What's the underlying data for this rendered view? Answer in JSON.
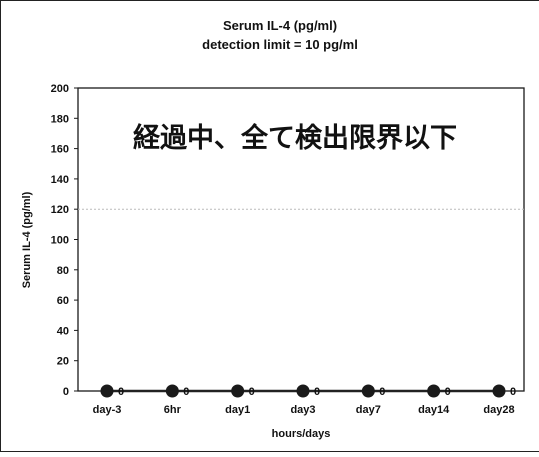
{
  "chart_data": {
    "type": "line",
    "title": "Serum IL-4 (pg/ml)",
    "subtitle": "detection limit = 10 pg/ml",
    "annotation": "経過中、全て検出限界以下",
    "xlabel": "hours/days",
    "ylabel": "Serum IL-4 (pg/ml)",
    "categories": [
      "day-3",
      "6hr",
      "day1",
      "day3",
      "day7",
      "day14",
      "day28"
    ],
    "yticks": [
      0,
      20,
      40,
      60,
      80,
      100,
      120,
      140,
      160,
      180,
      200
    ],
    "ylim": [
      0,
      200
    ],
    "reference_line": 120,
    "series": [
      {
        "values": [
          0,
          0,
          0,
          0,
          0,
          0,
          0
        ],
        "point_labels": [
          "0",
          "0",
          "0",
          "0",
          "0",
          "0",
          "0"
        ]
      }
    ],
    "grid": false,
    "colors": {
      "line": "#222222",
      "marker": "#1a1a1a",
      "reference": "#bbbbbb"
    }
  }
}
